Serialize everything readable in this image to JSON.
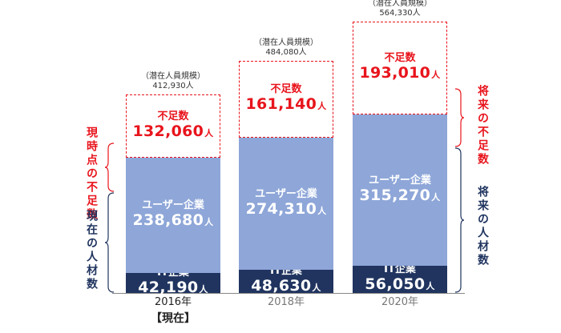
{
  "chart_data": {
    "type": "bar",
    "stacked": true,
    "categories": [
      "2016年",
      "2018年",
      "2020年"
    ],
    "category_note": "【現在】",
    "unit": "人",
    "series": [
      {
        "name": "IT企業",
        "values": [
          42190,
          48630,
          56050
        ],
        "display": [
          "42,190",
          "48,630",
          "56,050"
        ]
      },
      {
        "name": "ユーザー企業",
        "values": [
          238680,
          274310,
          315270
        ],
        "display": [
          "238,680",
          "274,310",
          "315,270"
        ]
      },
      {
        "name": "不足数",
        "values": [
          132060,
          161140,
          193010
        ],
        "display": [
          "132,060",
          "161,140",
          "193,010"
        ]
      }
    ],
    "totals": {
      "label": "（潜在人員規模）",
      "values": [
        412930,
        484080,
        564330
      ],
      "display": [
        "412,930人",
        "484,080人",
        "564,330人"
      ]
    },
    "ylim": [
      0,
      600000
    ],
    "grid": false,
    "legend": "none"
  },
  "annotations": {
    "left_shortage": "現時点の不足数",
    "left_current": "現在の人材数",
    "right_shortage": "将来の不足数",
    "right_future": "将来の人材数"
  },
  "colors": {
    "it": "#20345f",
    "user": "#8ea6d8",
    "shortage": "#e8141c"
  }
}
